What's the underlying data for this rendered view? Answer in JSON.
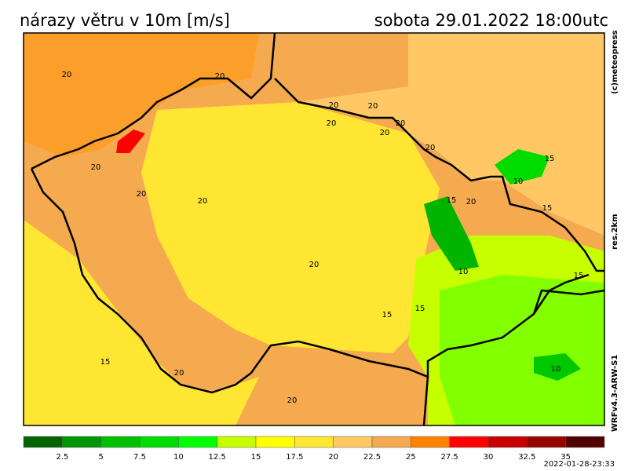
{
  "header": {
    "title": "nárazy větru v 10m [m/s]",
    "datetime": "sobota 29.01.2022 18:00utc"
  },
  "side_labels": {
    "copyright": "(c)meteopress",
    "resolution": "res.2km",
    "model": "WRFv4.3-ARW-S1"
  },
  "colorbar": {
    "colors": [
      "#006400",
      "#009600",
      "#00be00",
      "#00dc00",
      "#00ff00",
      "#c8ff00",
      "#ffff00",
      "#ffe632",
      "#ffc864",
      "#f5aa50",
      "#ff8200",
      "#ff0000",
      "#c80000",
      "#960000",
      "#500000"
    ],
    "ticks": [
      2.5,
      5,
      7.5,
      10,
      12.5,
      15,
      17.5,
      20,
      22.5,
      25,
      27.5,
      30,
      32.5,
      35
    ]
  },
  "contour_labels": [
    "20",
    "20",
    "20",
    "20",
    "20",
    "20",
    "20",
    "20",
    "20",
    "20",
    "20",
    "20",
    "15",
    "15",
    "10",
    "15",
    "20",
    "15",
    "10",
    "15",
    "15",
    "15",
    "20",
    "20",
    "10"
  ],
  "footer": {
    "timestamp": "2022-01-28-23:33"
  }
}
